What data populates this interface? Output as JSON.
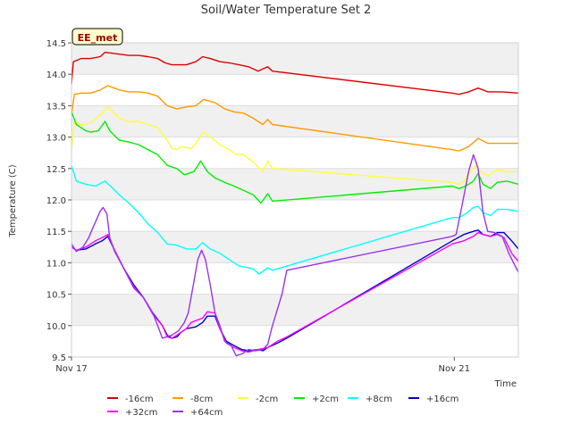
{
  "chart_data": {
    "type": "line",
    "title": "Soil/Water Temperature Set 2",
    "xlabel": "Time",
    "ylabel": "Temperature (C)",
    "badge": "EE_met",
    "xlim": [
      0,
      4.67
    ],
    "ylim": [
      9.5,
      14.5
    ],
    "x_ticks": [
      {
        "value": 0,
        "label": "Nov 17"
      },
      {
        "value": 4,
        "label": "Nov 21"
      }
    ],
    "y_ticks": [
      9.5,
      10.0,
      10.5,
      11.0,
      11.5,
      12.0,
      12.5,
      13.0,
      13.5,
      14.0,
      14.5
    ],
    "y_tick_labels": [
      "9.5",
      "10.0",
      "10.5",
      "11.0",
      "11.5",
      "12.0",
      "12.5",
      "13.0",
      "13.5",
      "14.0",
      "14.5"
    ],
    "grid": "alternating horizontal bands",
    "legend_position": "bottom",
    "series": [
      {
        "name": "-16cm",
        "color": "#dd0000",
        "points": [
          [
            0,
            13.85
          ],
          [
            0.02,
            14.2
          ],
          [
            0.1,
            14.25
          ],
          [
            0.2,
            14.25
          ],
          [
            0.3,
            14.28
          ],
          [
            0.35,
            14.35
          ],
          [
            0.5,
            14.32
          ],
          [
            0.6,
            14.3
          ],
          [
            0.7,
            14.3
          ],
          [
            0.8,
            14.28
          ],
          [
            0.9,
            14.25
          ],
          [
            0.98,
            14.18
          ],
          [
            1.05,
            14.15
          ],
          [
            1.2,
            14.15
          ],
          [
            1.3,
            14.2
          ],
          [
            1.37,
            14.28
          ],
          [
            1.45,
            14.25
          ],
          [
            1.55,
            14.2
          ],
          [
            1.65,
            14.18
          ],
          [
            1.75,
            14.15
          ],
          [
            1.85,
            14.12
          ],
          [
            1.95,
            14.05
          ],
          [
            2.05,
            14.12
          ],
          [
            2.1,
            14.05
          ],
          [
            3.98,
            13.7
          ],
          [
            4.05,
            13.68
          ],
          [
            4.15,
            13.72
          ],
          [
            4.25,
            13.78
          ],
          [
            4.35,
            13.72
          ],
          [
            4.5,
            13.72
          ],
          [
            4.67,
            13.7
          ]
        ]
      },
      {
        "name": "-8cm",
        "color": "#ff9900",
        "points": [
          [
            0,
            13.35
          ],
          [
            0.03,
            13.68
          ],
          [
            0.1,
            13.7
          ],
          [
            0.2,
            13.7
          ],
          [
            0.3,
            13.75
          ],
          [
            0.38,
            13.82
          ],
          [
            0.5,
            13.75
          ],
          [
            0.6,
            13.72
          ],
          [
            0.7,
            13.72
          ],
          [
            0.8,
            13.7
          ],
          [
            0.9,
            13.65
          ],
          [
            1.0,
            13.5
          ],
          [
            1.1,
            13.45
          ],
          [
            1.2,
            13.48
          ],
          [
            1.3,
            13.5
          ],
          [
            1.38,
            13.6
          ],
          [
            1.5,
            13.55
          ],
          [
            1.6,
            13.45
          ],
          [
            1.7,
            13.4
          ],
          [
            1.8,
            13.38
          ],
          [
            1.9,
            13.3
          ],
          [
            2.0,
            13.2
          ],
          [
            2.05,
            13.28
          ],
          [
            2.1,
            13.2
          ],
          [
            3.98,
            12.8
          ],
          [
            4.05,
            12.78
          ],
          [
            4.15,
            12.85
          ],
          [
            4.25,
            12.98
          ],
          [
            4.35,
            12.9
          ],
          [
            4.45,
            12.9
          ],
          [
            4.67,
            12.9
          ]
        ]
      },
      {
        "name": "-2cm",
        "color": "#ffff33",
        "points": [
          [
            0,
            12.8
          ],
          [
            0.03,
            13.25
          ],
          [
            0.1,
            13.2
          ],
          [
            0.2,
            13.22
          ],
          [
            0.3,
            13.35
          ],
          [
            0.38,
            13.48
          ],
          [
            0.5,
            13.3
          ],
          [
            0.6,
            13.25
          ],
          [
            0.7,
            13.25
          ],
          [
            0.8,
            13.2
          ],
          [
            0.9,
            13.15
          ],
          [
            1.0,
            12.95
          ],
          [
            1.05,
            12.82
          ],
          [
            1.1,
            12.8
          ],
          [
            1.15,
            12.85
          ],
          [
            1.25,
            12.82
          ],
          [
            1.3,
            12.9
          ],
          [
            1.38,
            13.08
          ],
          [
            1.45,
            13.0
          ],
          [
            1.55,
            12.88
          ],
          [
            1.65,
            12.8
          ],
          [
            1.72,
            12.72
          ],
          [
            1.8,
            12.72
          ],
          [
            1.9,
            12.6
          ],
          [
            2.0,
            12.45
          ],
          [
            2.05,
            12.62
          ],
          [
            2.1,
            12.5
          ],
          [
            3.98,
            12.28
          ],
          [
            4.05,
            12.25
          ],
          [
            4.1,
            12.3
          ],
          [
            4.15,
            12.4
          ],
          [
            4.22,
            12.55
          ],
          [
            4.28,
            12.45
          ],
          [
            4.35,
            12.38
          ],
          [
            4.45,
            12.48
          ],
          [
            4.55,
            12.45
          ],
          [
            4.67,
            12.45
          ]
        ]
      },
      {
        "name": "+2cm",
        "color": "#00ee00",
        "points": [
          [
            0,
            13.4
          ],
          [
            0.05,
            13.2
          ],
          [
            0.15,
            13.1
          ],
          [
            0.2,
            13.08
          ],
          [
            0.28,
            13.1
          ],
          [
            0.35,
            13.25
          ],
          [
            0.4,
            13.1
          ],
          [
            0.5,
            12.95
          ],
          [
            0.6,
            12.92
          ],
          [
            0.7,
            12.88
          ],
          [
            0.8,
            12.8
          ],
          [
            0.9,
            12.72
          ],
          [
            1.0,
            12.55
          ],
          [
            1.1,
            12.5
          ],
          [
            1.18,
            12.4
          ],
          [
            1.28,
            12.45
          ],
          [
            1.35,
            12.62
          ],
          [
            1.42,
            12.45
          ],
          [
            1.5,
            12.35
          ],
          [
            1.6,
            12.28
          ],
          [
            1.7,
            12.22
          ],
          [
            1.8,
            12.15
          ],
          [
            1.9,
            12.08
          ],
          [
            1.98,
            11.95
          ],
          [
            2.05,
            12.1
          ],
          [
            2.1,
            11.98
          ],
          [
            3.98,
            12.22
          ],
          [
            4.05,
            12.18
          ],
          [
            4.12,
            12.22
          ],
          [
            4.2,
            12.3
          ],
          [
            4.25,
            12.42
          ],
          [
            4.3,
            12.25
          ],
          [
            4.38,
            12.18
          ],
          [
            4.45,
            12.28
          ],
          [
            4.55,
            12.3
          ],
          [
            4.67,
            12.25
          ]
        ]
      },
      {
        "name": "+8cm",
        "color": "#00ffff",
        "points": [
          [
            0,
            12.55
          ],
          [
            0.05,
            12.3
          ],
          [
            0.15,
            12.25
          ],
          [
            0.25,
            12.22
          ],
          [
            0.35,
            12.3
          ],
          [
            0.42,
            12.2
          ],
          [
            0.5,
            12.08
          ],
          [
            0.6,
            11.95
          ],
          [
            0.7,
            11.8
          ],
          [
            0.8,
            11.62
          ],
          [
            0.9,
            11.48
          ],
          [
            1.0,
            11.3
          ],
          [
            1.1,
            11.28
          ],
          [
            1.2,
            11.22
          ],
          [
            1.3,
            11.22
          ],
          [
            1.37,
            11.32
          ],
          [
            1.45,
            11.22
          ],
          [
            1.55,
            11.15
          ],
          [
            1.65,
            11.05
          ],
          [
            1.75,
            10.95
          ],
          [
            1.85,
            10.92
          ],
          [
            1.9,
            10.9
          ],
          [
            1.96,
            10.82
          ],
          [
            2.05,
            10.92
          ],
          [
            2.1,
            10.88
          ],
          [
            3.98,
            11.72
          ],
          [
            4.05,
            11.72
          ],
          [
            4.12,
            11.78
          ],
          [
            4.2,
            11.88
          ],
          [
            4.25,
            11.9
          ],
          [
            4.3,
            11.8
          ],
          [
            4.38,
            11.75
          ],
          [
            4.45,
            11.85
          ],
          [
            4.55,
            11.85
          ],
          [
            4.67,
            11.82
          ]
        ]
      },
      {
        "name": "+16cm",
        "color": "#0000cc",
        "points": [
          [
            0,
            11.25
          ],
          [
            0.05,
            11.2
          ],
          [
            0.15,
            11.22
          ],
          [
            0.25,
            11.3
          ],
          [
            0.32,
            11.35
          ],
          [
            0.38,
            11.42
          ],
          [
            0.45,
            11.2
          ],
          [
            0.55,
            10.9
          ],
          [
            0.65,
            10.65
          ],
          [
            0.75,
            10.45
          ],
          [
            0.85,
            10.2
          ],
          [
            0.95,
            10.0
          ],
          [
            1.0,
            9.85
          ],
          [
            1.05,
            9.8
          ],
          [
            1.1,
            9.82
          ],
          [
            1.15,
            9.9
          ],
          [
            1.2,
            9.95
          ],
          [
            1.3,
            9.98
          ],
          [
            1.37,
            10.05
          ],
          [
            1.42,
            10.15
          ],
          [
            1.5,
            10.15
          ],
          [
            1.55,
            9.95
          ],
          [
            1.62,
            9.75
          ],
          [
            1.7,
            9.68
          ],
          [
            1.78,
            9.62
          ],
          [
            1.85,
            9.6
          ],
          [
            1.95,
            9.62
          ],
          [
            2.0,
            9.6
          ],
          [
            2.05,
            9.65
          ],
          [
            2.15,
            9.72
          ],
          [
            2.25,
            9.8
          ],
          [
            3.98,
            11.35
          ],
          [
            4.1,
            11.45
          ],
          [
            4.2,
            11.5
          ],
          [
            4.25,
            11.52
          ],
          [
            4.3,
            11.45
          ],
          [
            4.38,
            11.42
          ],
          [
            4.45,
            11.48
          ],
          [
            4.52,
            11.48
          ],
          [
            4.6,
            11.35
          ],
          [
            4.67,
            11.22
          ]
        ]
      },
      {
        "name": "+32cm",
        "color": "#ff00ff",
        "points": [
          [
            0,
            11.25
          ],
          [
            0.05,
            11.2
          ],
          [
            0.15,
            11.25
          ],
          [
            0.25,
            11.35
          ],
          [
            0.32,
            11.4
          ],
          [
            0.38,
            11.45
          ],
          [
            0.45,
            11.2
          ],
          [
            0.55,
            10.9
          ],
          [
            0.65,
            10.62
          ],
          [
            0.75,
            10.45
          ],
          [
            0.85,
            10.18
          ],
          [
            0.95,
            10.0
          ],
          [
            1.0,
            9.82
          ],
          [
            1.05,
            9.8
          ],
          [
            1.1,
            9.85
          ],
          [
            1.2,
            9.95
          ],
          [
            1.25,
            10.05
          ],
          [
            1.3,
            10.08
          ],
          [
            1.37,
            10.12
          ],
          [
            1.42,
            10.22
          ],
          [
            1.5,
            10.2
          ],
          [
            1.55,
            9.95
          ],
          [
            1.62,
            9.72
          ],
          [
            1.7,
            9.65
          ],
          [
            1.78,
            9.6
          ],
          [
            1.85,
            9.58
          ],
          [
            1.95,
            9.62
          ],
          [
            2.05,
            9.65
          ],
          [
            2.15,
            9.75
          ],
          [
            2.25,
            9.82
          ],
          [
            3.98,
            11.3
          ],
          [
            4.1,
            11.35
          ],
          [
            4.2,
            11.42
          ],
          [
            4.25,
            11.48
          ],
          [
            4.3,
            11.45
          ],
          [
            4.38,
            11.42
          ],
          [
            4.45,
            11.45
          ],
          [
            4.52,
            11.4
          ],
          [
            4.6,
            11.15
          ],
          [
            4.67,
            11.02
          ]
        ]
      },
      {
        "name": "+64cm",
        "color": "#9933ee",
        "points": [
          [
            0,
            11.3
          ],
          [
            0.05,
            11.18
          ],
          [
            0.12,
            11.25
          ],
          [
            0.18,
            11.4
          ],
          [
            0.25,
            11.65
          ],
          [
            0.3,
            11.82
          ],
          [
            0.33,
            11.88
          ],
          [
            0.37,
            11.78
          ],
          [
            0.4,
            11.4
          ],
          [
            0.45,
            11.18
          ],
          [
            0.55,
            10.9
          ],
          [
            0.65,
            10.6
          ],
          [
            0.75,
            10.45
          ],
          [
            0.85,
            10.2
          ],
          [
            0.9,
            10.0
          ],
          [
            0.95,
            9.8
          ],
          [
            1.05,
            9.85
          ],
          [
            1.12,
            9.92
          ],
          [
            1.18,
            10.05
          ],
          [
            1.22,
            10.2
          ],
          [
            1.28,
            10.7
          ],
          [
            1.32,
            11.05
          ],
          [
            1.36,
            11.2
          ],
          [
            1.4,
            11.05
          ],
          [
            1.45,
            10.65
          ],
          [
            1.5,
            10.2
          ],
          [
            1.55,
            10.0
          ],
          [
            1.6,
            9.75
          ],
          [
            1.67,
            9.68
          ],
          [
            1.72,
            9.52
          ],
          [
            1.78,
            9.55
          ],
          [
            1.85,
            9.62
          ],
          [
            1.92,
            9.6
          ],
          [
            2.0,
            9.62
          ],
          [
            2.05,
            9.7
          ],
          [
            2.1,
            10.0
          ],
          [
            2.15,
            10.25
          ],
          [
            2.2,
            10.5
          ],
          [
            2.25,
            10.88
          ],
          [
            3.98,
            11.42
          ],
          [
            4.02,
            11.45
          ],
          [
            4.08,
            11.9
          ],
          [
            4.15,
            12.45
          ],
          [
            4.2,
            12.72
          ],
          [
            4.25,
            12.5
          ],
          [
            4.3,
            11.8
          ],
          [
            4.35,
            11.5
          ],
          [
            4.42,
            11.48
          ],
          [
            4.5,
            11.42
          ],
          [
            4.57,
            11.15
          ],
          [
            4.62,
            11.0
          ],
          [
            4.67,
            10.85
          ]
        ]
      }
    ]
  }
}
